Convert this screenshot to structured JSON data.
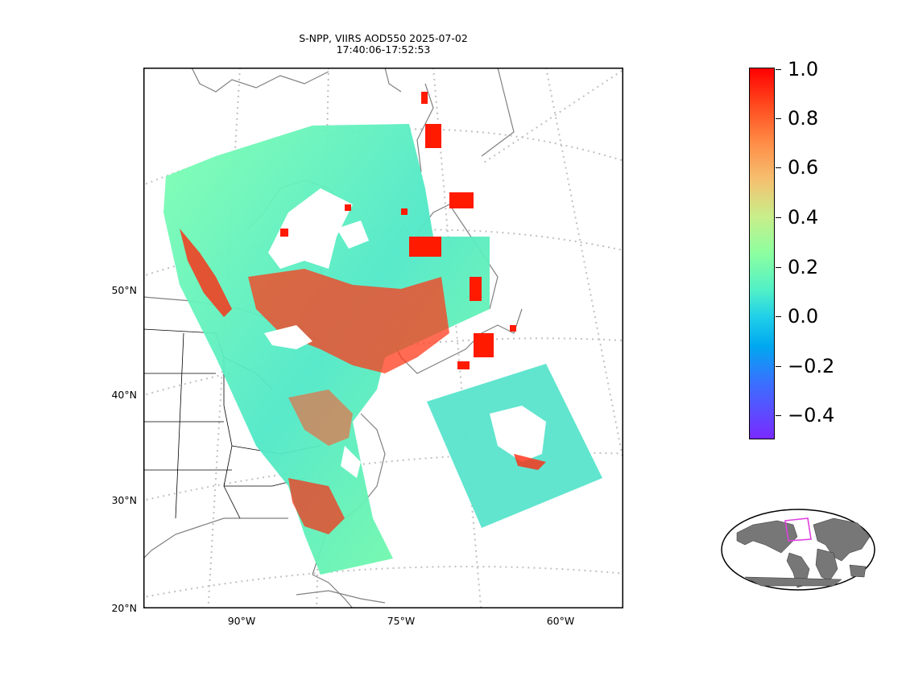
{
  "title": {
    "line1": "S-NPP, VIIRS AOD550 2025-07-02",
    "line2": "17:40:06-17:52:53"
  },
  "map": {
    "lat_labels": [
      "50°N",
      "40°N",
      "30°N",
      "20°N"
    ],
    "lon_labels": [
      "90°W",
      "75°W",
      "60°W"
    ],
    "colors": {
      "land_border": "#808080",
      "state_border": "#000000",
      "gridline": "#c0c0c0"
    }
  },
  "colorbar": {
    "ticks": [
      "1.0",
      "0.8",
      "0.6",
      "0.4",
      "0.2",
      "0.0",
      "−0.2",
      "−0.4"
    ],
    "vmin": -0.5,
    "vmax": 1.0,
    "colormap": "rainbow"
  },
  "inset": {
    "description_icon": "world-locator-icon",
    "highlight_color": "#e040e0"
  }
}
